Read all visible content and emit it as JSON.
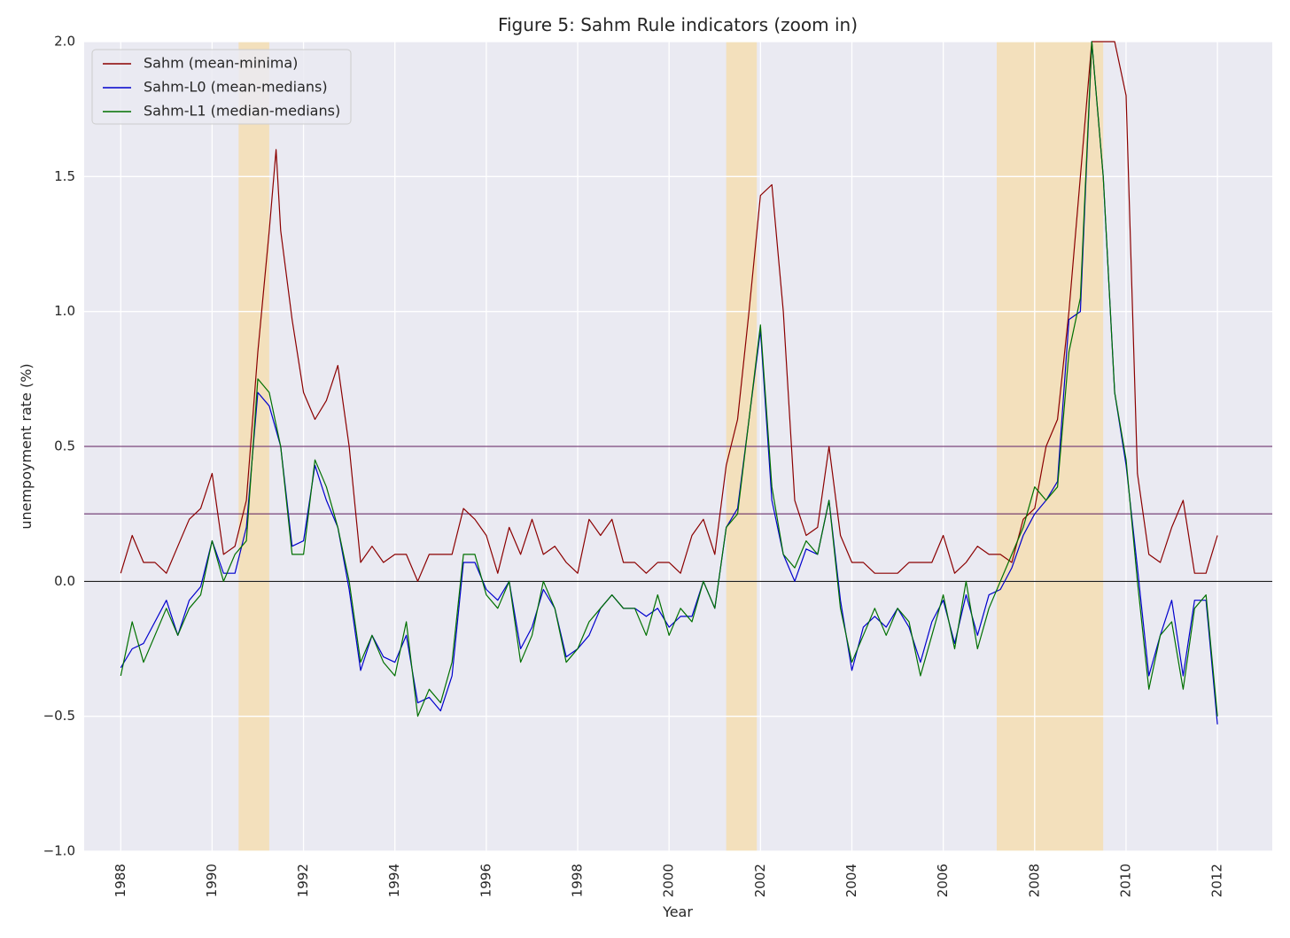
{
  "chart_data": {
    "type": "line",
    "title": "Figure 5: Sahm Rule indicators (zoom in)",
    "xlabel": "Year",
    "ylabel": "unempoyment rate (%)",
    "xlim": [
      1987.2,
      2013.2
    ],
    "ylim": [
      -1.0,
      2.0
    ],
    "xticks": [
      1988,
      1990,
      1992,
      1994,
      1996,
      1998,
      2000,
      2002,
      2004,
      2006,
      2008,
      2010,
      2012
    ],
    "xtick_labels": [
      "1988",
      "1990",
      "1992",
      "1994",
      "1996",
      "1998",
      "2000",
      "2002",
      "2004",
      "2006",
      "2008",
      "2010",
      "2012"
    ],
    "yticks": [
      -1.0,
      -0.5,
      0.0,
      0.5,
      1.0,
      1.5,
      2.0
    ],
    "ytick_labels": [
      "−1.0",
      "−0.5",
      "0.0",
      "0.5",
      "1.0",
      "1.5",
      "2.0"
    ],
    "grid": true,
    "legend_position": "top-left",
    "recessions": [
      [
        1990.58,
        1991.25
      ],
      [
        2001.25,
        2001.92
      ],
      [
        2007.17,
        2009.5
      ]
    ],
    "hlines": [
      {
        "y": 0.5,
        "color": "#5b1a5b"
      },
      {
        "y": 0.25,
        "color": "#5b1a5b"
      },
      {
        "y": 0.0,
        "color": "#000000"
      }
    ],
    "series": [
      {
        "name": "Sahm (mean-minima)",
        "color": "#8b0000",
        "x": [
          1988.0,
          1988.25,
          1988.5,
          1988.75,
          1989.0,
          1989.25,
          1989.5,
          1989.75,
          1990.0,
          1990.25,
          1990.5,
          1990.75,
          1991.0,
          1991.25,
          1991.4,
          1991.5,
          1991.75,
          1992.0,
          1992.25,
          1992.5,
          1992.75,
          1993.0,
          1993.25,
          1993.5,
          1993.75,
          1994.0,
          1994.25,
          1994.5,
          1994.75,
          1995.0,
          1995.25,
          1995.5,
          1995.75,
          1996.0,
          1996.25,
          1996.5,
          1996.75,
          1997.0,
          1997.25,
          1997.5,
          1997.75,
          1998.0,
          1998.25,
          1998.5,
          1998.75,
          1999.0,
          1999.25,
          1999.5,
          1999.75,
          2000.0,
          2000.25,
          2000.5,
          2000.75,
          2001.0,
          2001.25,
          2001.5,
          2001.75,
          2002.0,
          2002.25,
          2002.5,
          2002.75,
          2003.0,
          2003.25,
          2003.5,
          2003.75,
          2004.0,
          2004.25,
          2004.5,
          2004.75,
          2005.0,
          2005.25,
          2005.5,
          2005.75,
          2006.0,
          2006.25,
          2006.5,
          2006.75,
          2007.0,
          2007.25,
          2007.5,
          2007.75,
          2008.0,
          2008.25,
          2008.5,
          2008.75,
          2009.0,
          2009.25,
          2009.5,
          2009.75,
          2010.0,
          2010.25,
          2010.5,
          2010.75,
          2011.0,
          2011.25,
          2011.5,
          2011.75,
          2012.0
        ],
        "y": [
          0.03,
          0.17,
          0.07,
          0.07,
          0.03,
          0.13,
          0.23,
          0.27,
          0.4,
          0.1,
          0.13,
          0.3,
          0.85,
          1.3,
          1.6,
          1.3,
          0.97,
          0.7,
          0.6,
          0.67,
          0.8,
          0.5,
          0.07,
          0.13,
          0.07,
          0.1,
          0.1,
          0.0,
          0.1,
          0.1,
          0.1,
          0.27,
          0.23,
          0.17,
          0.03,
          0.2,
          0.1,
          0.23,
          0.1,
          0.13,
          0.07,
          0.03,
          0.23,
          0.17,
          0.23,
          0.07,
          0.07,
          0.03,
          0.07,
          0.07,
          0.03,
          0.17,
          0.23,
          0.1,
          0.43,
          0.6,
          1.0,
          1.43,
          1.47,
          1.0,
          0.3,
          0.17,
          0.2,
          0.5,
          0.17,
          0.07,
          0.07,
          0.03,
          0.03,
          0.03,
          0.07,
          0.07,
          0.07,
          0.17,
          0.03,
          0.07,
          0.13,
          0.1,
          0.1,
          0.07,
          0.23,
          0.27,
          0.5,
          0.6,
          1.0,
          1.5,
          2.0,
          2.0,
          2.0,
          1.8,
          0.4,
          0.1,
          0.07,
          0.2,
          0.3,
          0.03,
          0.03,
          0.17
        ]
      },
      {
        "name": "Sahm-L0 (mean-medians)",
        "color": "#0000cd",
        "x": [
          1988.0,
          1988.25,
          1988.5,
          1988.75,
          1989.0,
          1989.25,
          1989.5,
          1989.75,
          1990.0,
          1990.25,
          1990.5,
          1990.75,
          1991.0,
          1991.25,
          1991.5,
          1991.75,
          1992.0,
          1992.25,
          1992.5,
          1992.75,
          1993.0,
          1993.25,
          1993.5,
          1993.75,
          1994.0,
          1994.25,
          1994.5,
          1994.75,
          1995.0,
          1995.25,
          1995.5,
          1995.75,
          1996.0,
          1996.25,
          1996.5,
          1996.75,
          1997.0,
          1997.25,
          1997.5,
          1997.75,
          1998.0,
          1998.25,
          1998.5,
          1998.75,
          1999.0,
          1999.25,
          1999.5,
          1999.75,
          2000.0,
          2000.25,
          2000.5,
          2000.75,
          2001.0,
          2001.25,
          2001.5,
          2001.75,
          2002.0,
          2002.25,
          2002.5,
          2002.75,
          2003.0,
          2003.25,
          2003.5,
          2003.75,
          2004.0,
          2004.25,
          2004.5,
          2004.75,
          2005.0,
          2005.25,
          2005.5,
          2005.75,
          2006.0,
          2006.25,
          2006.5,
          2006.75,
          2007.0,
          2007.25,
          2007.5,
          2007.75,
          2008.0,
          2008.25,
          2008.5,
          2008.75,
          2009.0,
          2009.25,
          2009.5,
          2009.75,
          2010.0,
          2010.25,
          2010.5,
          2010.75,
          2011.0,
          2011.25,
          2011.5,
          2011.75,
          2012.0
        ],
        "y": [
          -0.32,
          -0.25,
          -0.23,
          -0.15,
          -0.07,
          -0.2,
          -0.07,
          -0.02,
          0.15,
          0.03,
          0.03,
          0.2,
          0.7,
          0.65,
          0.5,
          0.13,
          0.15,
          0.43,
          0.3,
          0.2,
          -0.03,
          -0.33,
          -0.2,
          -0.28,
          -0.3,
          -0.2,
          -0.45,
          -0.43,
          -0.48,
          -0.35,
          0.07,
          0.07,
          -0.03,
          -0.07,
          0.0,
          -0.25,
          -0.17,
          -0.03,
          -0.1,
          -0.28,
          -0.25,
          -0.2,
          -0.1,
          -0.05,
          -0.1,
          -0.1,
          -0.13,
          -0.1,
          -0.17,
          -0.13,
          -0.13,
          0.0,
          -0.1,
          0.2,
          0.27,
          0.6,
          0.93,
          0.3,
          0.1,
          0.0,
          0.12,
          0.1,
          0.3,
          -0.07,
          -0.33,
          -0.17,
          -0.13,
          -0.17,
          -0.1,
          -0.17,
          -0.3,
          -0.15,
          -0.07,
          -0.23,
          -0.05,
          -0.2,
          -0.05,
          -0.03,
          0.05,
          0.17,
          0.25,
          0.3,
          0.37,
          0.97,
          1.0,
          2.0,
          1.5,
          0.7,
          0.43,
          0.05,
          -0.35,
          -0.2,
          -0.07,
          -0.35,
          -0.07,
          -0.07,
          -0.53
        ]
      },
      {
        "name": "Sahm-L1 (median-medians)",
        "color": "#007000",
        "x": [
          1988.0,
          1988.25,
          1988.5,
          1988.75,
          1989.0,
          1989.25,
          1989.5,
          1989.75,
          1990.0,
          1990.25,
          1990.5,
          1990.75,
          1991.0,
          1991.25,
          1991.5,
          1991.75,
          1992.0,
          1992.25,
          1992.5,
          1992.75,
          1993.0,
          1993.25,
          1993.5,
          1993.75,
          1994.0,
          1994.25,
          1994.5,
          1994.75,
          1995.0,
          1995.25,
          1995.5,
          1995.75,
          1996.0,
          1996.25,
          1996.5,
          1996.75,
          1997.0,
          1997.25,
          1997.5,
          1997.75,
          1998.0,
          1998.25,
          1998.5,
          1998.75,
          1999.0,
          1999.25,
          1999.5,
          1999.75,
          2000.0,
          2000.25,
          2000.5,
          2000.75,
          2001.0,
          2001.25,
          2001.5,
          2001.75,
          2002.0,
          2002.25,
          2002.5,
          2002.75,
          2003.0,
          2003.25,
          2003.5,
          2003.75,
          2004.0,
          2004.25,
          2004.5,
          2004.75,
          2005.0,
          2005.25,
          2005.5,
          2005.75,
          2006.0,
          2006.25,
          2006.5,
          2006.75,
          2007.0,
          2007.25,
          2007.5,
          2007.75,
          2008.0,
          2008.25,
          2008.5,
          2008.75,
          2009.0,
          2009.25,
          2009.5,
          2009.75,
          2010.0,
          2010.25,
          2010.5,
          2010.75,
          2011.0,
          2011.25,
          2011.5,
          2011.75,
          2012.0
        ],
        "y": [
          -0.35,
          -0.15,
          -0.3,
          -0.2,
          -0.1,
          -0.2,
          -0.1,
          -0.05,
          0.15,
          0.0,
          0.1,
          0.15,
          0.75,
          0.7,
          0.5,
          0.1,
          0.1,
          0.45,
          0.35,
          0.2,
          0.0,
          -0.3,
          -0.2,
          -0.3,
          -0.35,
          -0.15,
          -0.5,
          -0.4,
          -0.45,
          -0.3,
          0.1,
          0.1,
          -0.05,
          -0.1,
          0.0,
          -0.3,
          -0.2,
          0.0,
          -0.1,
          -0.3,
          -0.25,
          -0.15,
          -0.1,
          -0.05,
          -0.1,
          -0.1,
          -0.2,
          -0.05,
          -0.2,
          -0.1,
          -0.15,
          0.0,
          -0.1,
          0.2,
          0.25,
          0.6,
          0.95,
          0.35,
          0.1,
          0.05,
          0.15,
          0.1,
          0.3,
          -0.1,
          -0.3,
          -0.2,
          -0.1,
          -0.2,
          -0.1,
          -0.15,
          -0.35,
          -0.2,
          -0.05,
          -0.25,
          0.0,
          -0.25,
          -0.1,
          0.0,
          0.1,
          0.2,
          0.35,
          0.3,
          0.35,
          0.85,
          1.05,
          2.0,
          1.5,
          0.7,
          0.45,
          0.0,
          -0.4,
          -0.2,
          -0.15,
          -0.4,
          -0.1,
          -0.05,
          -0.5
        ]
      }
    ]
  }
}
